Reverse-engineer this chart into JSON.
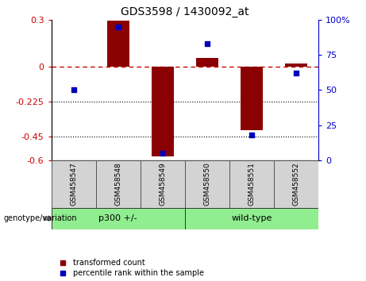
{
  "title": "GDS3598 / 1430092_at",
  "samples": [
    "GSM458547",
    "GSM458548",
    "GSM458549",
    "GSM458550",
    "GSM458551",
    "GSM458552"
  ],
  "transformed_count": [
    0.0,
    0.295,
    -0.575,
    0.055,
    -0.41,
    0.02
  ],
  "percentile_rank": [
    50,
    95,
    5,
    83,
    18,
    62
  ],
  "group_labels": [
    "p300 +/-",
    "wild-type"
  ],
  "group_ranges": [
    [
      0,
      2
    ],
    [
      3,
      5
    ]
  ],
  "group_color": "#90ee90",
  "ylim_left": [
    -0.6,
    0.3
  ],
  "ylim_right": [
    0,
    100
  ],
  "yticks_left": [
    0.3,
    0.0,
    -0.225,
    -0.45,
    -0.6
  ],
  "yticks_left_labels": [
    "0.3",
    "0",
    "-0.225",
    "-0.45",
    "-0.6"
  ],
  "yticks_right": [
    100,
    75,
    50,
    25,
    0
  ],
  "yticks_right_labels": [
    "100%",
    "75",
    "50",
    "25",
    "0"
  ],
  "dotted_lines": [
    -0.225,
    -0.45
  ],
  "bar_color": "#8B0000",
  "scatter_color": "#0000bb",
  "bar_width": 0.5,
  "legend_items": [
    {
      "label": "transformed count",
      "color": "#8B0000"
    },
    {
      "label": "percentile rank within the sample",
      "color": "#0000bb"
    }
  ],
  "group_label_text": "genotype/variation",
  "tick_color_left": "#cc0000",
  "tick_color_right": "#0000cc",
  "plot_bg": "#ffffff",
  "sample_box_color": "#d3d3d3"
}
